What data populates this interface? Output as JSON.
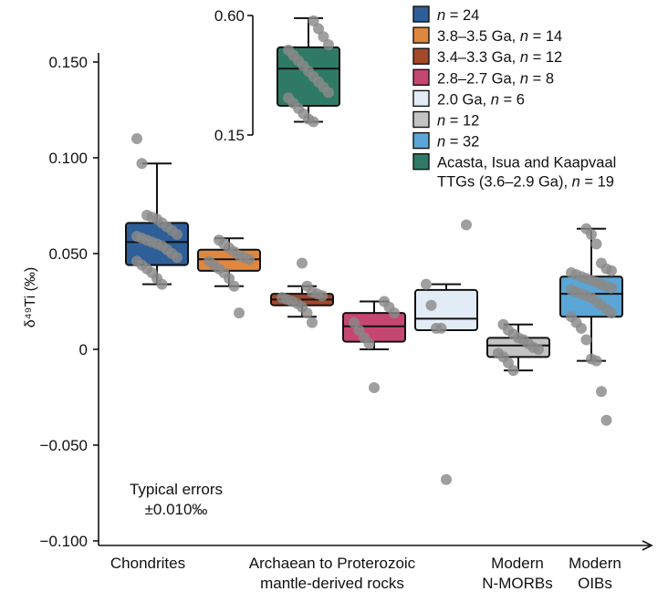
{
  "chart_data": {
    "type": "box",
    "ylabel": "δ⁴⁹Ti (‰)",
    "ylim": [
      -0.1,
      0.16
    ],
    "yticks": [
      -0.1,
      -0.05,
      0,
      0.05,
      0.1,
      0.15
    ],
    "ytick_labels": [
      "−0.100",
      "−0.050",
      "0",
      "0.050",
      "0.100",
      "0.150"
    ],
    "x_category_labels": [
      [
        "Chondrites"
      ],
      [
        "Archaean to Proterozoic",
        "mantle-derived rocks"
      ],
      [
        "Modern",
        "N-MORBs"
      ],
      [
        "Modern",
        "OIBs"
      ]
    ],
    "note": [
      "Typical errors",
      "±0.010‰"
    ],
    "series": [
      {
        "color": "#2e5f98",
        "legend": [
          {
            "t": "n",
            "i": true
          },
          {
            "t": " = 24"
          }
        ],
        "box": {
          "whisker_low": 0.034,
          "q1": 0.044,
          "median": 0.056,
          "q3": 0.066,
          "whisker_high": 0.097
        },
        "points": [
          0.11,
          0.097,
          0.07,
          0.069,
          0.068,
          0.066,
          0.064,
          0.062,
          0.06,
          0.059,
          0.058,
          0.057,
          0.056,
          0.055,
          0.054,
          0.052,
          0.05,
          0.048,
          0.046,
          0.044,
          0.042,
          0.04,
          0.037,
          0.034
        ]
      },
      {
        "color": "#e0873e",
        "legend": [
          {
            "t": "3.8–3.5 Ga, "
          },
          {
            "t": "n",
            "i": true
          },
          {
            "t": " = 14"
          }
        ],
        "box": {
          "whisker_low": 0.033,
          "q1": 0.041,
          "median": 0.047,
          "q3": 0.052,
          "whisker_high": 0.058
        },
        "points": [
          0.057,
          0.055,
          0.053,
          0.051,
          0.049,
          0.048,
          0.047,
          0.046,
          0.044,
          0.042,
          0.04,
          0.037,
          0.033,
          0.019
        ]
      },
      {
        "color": "#a4482a",
        "legend": [
          {
            "t": "3.4–3.3 Ga, "
          },
          {
            "t": "n",
            "i": true
          },
          {
            "t": " = 12"
          }
        ],
        "box": {
          "whisker_low": 0.017,
          "q1": 0.023,
          "median": 0.026,
          "q3": 0.029,
          "whisker_high": 0.033
        },
        "points": [
          0.045,
          0.033,
          0.03,
          0.029,
          0.028,
          0.027,
          0.026,
          0.025,
          0.024,
          0.022,
          0.019,
          0.014
        ]
      },
      {
        "color": "#c64672",
        "legend": [
          {
            "t": "2.8–2.7 Ga, "
          },
          {
            "t": "n",
            "i": true
          },
          {
            "t": " = 8"
          }
        ],
        "box": {
          "whisker_low": 0.0,
          "q1": 0.004,
          "median": 0.012,
          "q3": 0.019,
          "whisker_high": 0.025
        },
        "points": [
          0.025,
          0.022,
          0.019,
          0.014,
          0.01,
          0.006,
          0.003,
          -0.02
        ]
      },
      {
        "color": "#e2ecf7",
        "legend": [
          {
            "t": "2.0 Ga, "
          },
          {
            "t": "n",
            "i": true
          },
          {
            "t": " = 6"
          }
        ],
        "box": {
          "whisker_low": 0.01,
          "q1": 0.01,
          "median": 0.016,
          "q3": 0.031,
          "whisker_high": 0.034
        },
        "points": [
          0.065,
          0.034,
          0.023,
          0.011,
          0.011,
          -0.068
        ]
      },
      {
        "color": "#c3c3c3",
        "legend": [
          {
            "t": "n",
            "i": true
          },
          {
            "t": " = 12"
          }
        ],
        "box": {
          "whisker_low": -0.011,
          "q1": -0.004,
          "median": 0.002,
          "q3": 0.006,
          "whisker_high": 0.013
        },
        "points": [
          0.013,
          0.01,
          0.008,
          0.006,
          0.005,
          0.003,
          0.001,
          0.0,
          -0.002,
          -0.004,
          -0.007,
          -0.011
        ]
      },
      {
        "color": "#5aa6d6",
        "legend": [
          {
            "t": "n",
            "i": true
          },
          {
            "t": " = 32"
          }
        ],
        "box": {
          "whisker_low": -0.006,
          "q1": 0.017,
          "median": 0.029,
          "q3": 0.038,
          "whisker_high": 0.063
        },
        "points": [
          0.063,
          0.06,
          0.055,
          0.045,
          0.042,
          0.041,
          0.04,
          0.039,
          0.038,
          0.037,
          0.036,
          0.035,
          0.034,
          0.033,
          0.032,
          0.031,
          0.03,
          0.029,
          0.028,
          0.027,
          0.025,
          0.023,
          0.021,
          0.019,
          0.017,
          0.014,
          0.011,
          0.005,
          -0.005,
          -0.006,
          -0.022,
          -0.037
        ]
      }
    ],
    "inset": {
      "color": "#2f7a66",
      "legend": [
        [
          {
            "t": "Acasta, Isua and Kaapvaal"
          }
        ],
        [
          {
            "t": "TTGs (3.6–2.9 Ga), "
          },
          {
            "t": "n",
            "i": true
          },
          {
            "t": " = 19"
          }
        ]
      ],
      "ylim": [
        0.15,
        0.6
      ],
      "yticks": [
        0.15,
        0.6
      ],
      "ytick_labels": [
        "0.15",
        "0.60"
      ],
      "box": {
        "whisker_low": 0.2,
        "q1": 0.26,
        "median": 0.4,
        "q3": 0.48,
        "whisker_high": 0.59
      },
      "points": [
        0.58,
        0.55,
        0.52,
        0.49,
        0.47,
        0.45,
        0.43,
        0.41,
        0.39,
        0.37,
        0.35,
        0.33,
        0.31,
        0.29,
        0.27,
        0.25,
        0.23,
        0.21,
        0.2
      ]
    }
  }
}
